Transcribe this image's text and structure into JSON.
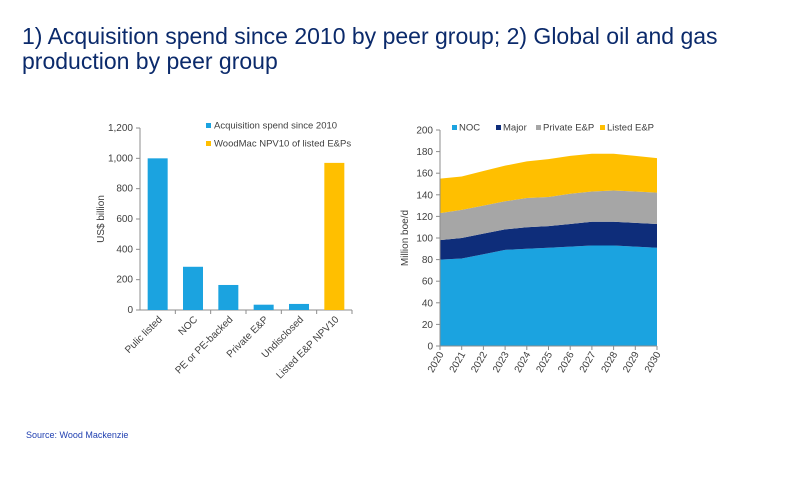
{
  "page": {
    "title": "1) Acquisition spend since 2010 by peer group; 2) Global oil and gas production by peer group",
    "source": "Source: Wood Mackenzie"
  },
  "chart_data": [
    {
      "type": "bar",
      "ylabel": "US$ billion",
      "ylim": [
        0,
        1200
      ],
      "yticks": [
        0,
        200,
        400,
        600,
        800,
        1000,
        1200
      ],
      "ytick_labels": [
        "0",
        "200",
        "400",
        "600",
        "800",
        "1,000",
        "1,200"
      ],
      "categories": [
        "Pulic listed",
        "NOC",
        "PE or PE-backed",
        "Private E&P",
        "Undisclosed",
        "Listed E&P NPV10"
      ],
      "series": [
        {
          "name": "Acquisition spend since 2010",
          "color": "#1ba3e0",
          "values": [
            1000,
            285,
            165,
            35,
            40,
            null
          ]
        },
        {
          "name": "WoodMac NPV10 of listed E&Ps",
          "color": "#ffbf00",
          "values": [
            null,
            null,
            null,
            null,
            null,
            970
          ]
        }
      ],
      "legend": "top-right",
      "grid": false
    },
    {
      "type": "area",
      "stacked": true,
      "ylabel": "Million boe/d",
      "ylim": [
        0,
        200
      ],
      "yticks": [
        0,
        20,
        40,
        60,
        80,
        100,
        120,
        140,
        160,
        180,
        200
      ],
      "x": [
        "2020",
        "2021",
        "2022",
        "2023",
        "2024",
        "2025",
        "2026",
        "2027",
        "2028",
        "2029",
        "2030"
      ],
      "series": [
        {
          "name": "NOC",
          "color": "#1ba3e0",
          "values": [
            80,
            81,
            85,
            89,
            90,
            91,
            92,
            93,
            93,
            92,
            91
          ]
        },
        {
          "name": "Major",
          "color": "#0e2d7a",
          "values": [
            18,
            19,
            19,
            19,
            20,
            20,
            21,
            22,
            22,
            22,
            22
          ]
        },
        {
          "name": "Private E&P",
          "color": "#a6a6a6",
          "values": [
            25,
            26,
            26,
            26,
            27,
            27,
            28,
            28,
            29,
            29,
            29
          ]
        },
        {
          "name": "Listed E&P",
          "color": "#ffbf00",
          "values": [
            32,
            31,
            32,
            33,
            34,
            35,
            35,
            35,
            34,
            33,
            32
          ]
        }
      ],
      "legend": "top",
      "grid": false
    }
  ]
}
